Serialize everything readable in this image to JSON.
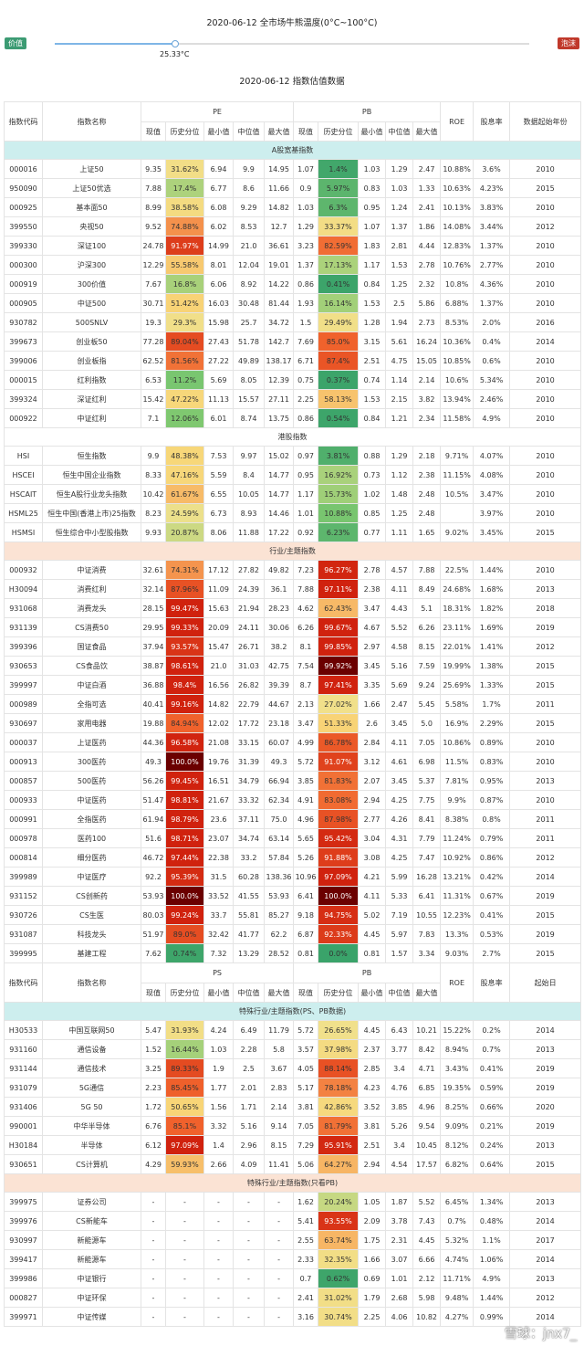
{
  "header": {
    "title": "2020-06-12 全市场牛熊温度(0°C~100°C)",
    "left_label": "价值",
    "right_label": "泡沫",
    "temperature": "25.33°C",
    "temperature_value": 25.33,
    "subtitle": "2020-06-12 指数估值数据"
  },
  "table": {
    "head1": [
      "指数代码",
      "指数名称",
      "PE",
      "PB",
      "ROE",
      "股息率",
      "数据起始年份"
    ],
    "head1_ps": [
      "指数代码",
      "指数名称",
      "PS",
      "PB",
      "ROE",
      "股息率",
      "起始日"
    ],
    "head2": [
      "现值",
      "历史分位",
      "最小值",
      "中位值",
      "最大值",
      "现值",
      "历史分位",
      "最小值",
      "中位值",
      "最大值"
    ],
    "sections": [
      {
        "title": "A股宽基指数",
        "color": "cyan",
        "header": null,
        "rows": [
          [
            "000016",
            "上证50",
            "9.35",
            "31.62%",
            "6.94",
            "9.9",
            "14.95",
            "1.07",
            "1.4%",
            "1.03",
            "1.29",
            "2.47",
            "10.88%",
            "3.6%",
            "2010"
          ],
          [
            "950090",
            "上证50优选",
            "7.88",
            "17.4%",
            "6.77",
            "8.6",
            "11.66",
            "0.9",
            "5.97%",
            "0.83",
            "1.03",
            "1.33",
            "10.63%",
            "4.23%",
            "2015"
          ],
          [
            "000925",
            "基本面50",
            "8.99",
            "38.58%",
            "6.08",
            "9.29",
            "14.82",
            "1.03",
            "6.3%",
            "0.95",
            "1.24",
            "2.41",
            "10.13%",
            "3.83%",
            "2010"
          ],
          [
            "399550",
            "央视50",
            "9.52",
            "74.88%",
            "6.02",
            "8.53",
            "12.7",
            "1.29",
            "33.37%",
            "1.07",
            "1.37",
            "1.86",
            "14.08%",
            "3.44%",
            "2012"
          ],
          [
            "399330",
            "深证100",
            "24.78",
            "91.97%",
            "14.99",
            "21.0",
            "36.61",
            "3.23",
            "82.59%",
            "1.83",
            "2.81",
            "4.44",
            "12.83%",
            "1.37%",
            "2010"
          ],
          [
            "000300",
            "沪深300",
            "12.29",
            "55.58%",
            "8.01",
            "12.04",
            "19.01",
            "1.37",
            "17.13%",
            "1.17",
            "1.53",
            "2.78",
            "10.76%",
            "2.77%",
            "2010"
          ],
          [
            "000919",
            "300价值",
            "7.67",
            "16.8%",
            "6.06",
            "8.92",
            "14.22",
            "0.86",
            "0.41%",
            "0.84",
            "1.25",
            "2.32",
            "10.8%",
            "4.36%",
            "2010"
          ],
          [
            "000905",
            "中证500",
            "30.71",
            "51.42%",
            "16.03",
            "30.48",
            "81.44",
            "1.93",
            "16.14%",
            "1.53",
            "2.5",
            "5.86",
            "6.88%",
            "1.37%",
            "2010"
          ],
          [
            "930782",
            "500SNLV",
            "19.3",
            "29.3%",
            "15.98",
            "25.7",
            "34.72",
            "1.5",
            "29.49%",
            "1.28",
            "1.94",
            "2.73",
            "8.53%",
            "2.0%",
            "2016"
          ],
          [
            "399673",
            "创业板50",
            "77.28",
            "89.04%",
            "27.43",
            "51.78",
            "142.7",
            "7.69",
            "85.0%",
            "3.15",
            "5.61",
            "16.24",
            "10.36%",
            "0.4%",
            "2014"
          ],
          [
            "399006",
            "创业板指",
            "62.52",
            "81.56%",
            "27.22",
            "49.89",
            "138.17",
            "6.71",
            "87.4%",
            "2.51",
            "4.75",
            "15.05",
            "10.85%",
            "0.6%",
            "2010"
          ],
          [
            "000015",
            "红利指数",
            "6.53",
            "11.2%",
            "5.69",
            "8.05",
            "12.39",
            "0.75",
            "0.37%",
            "0.74",
            "1.14",
            "2.14",
            "10.6%",
            "5.34%",
            "2010"
          ],
          [
            "399324",
            "深证红利",
            "15.42",
            "47.22%",
            "11.13",
            "15.57",
            "27.11",
            "2.25",
            "58.13%",
            "1.53",
            "2.15",
            "3.82",
            "13.94%",
            "2.46%",
            "2010"
          ],
          [
            "000922",
            "中证红利",
            "7.1",
            "12.06%",
            "6.01",
            "8.74",
            "13.75",
            "0.86",
            "0.54%",
            "0.84",
            "1.21",
            "2.34",
            "11.58%",
            "4.9%",
            "2010"
          ]
        ]
      },
      {
        "title": "港股指数",
        "color": "white",
        "header": null,
        "rows": [
          [
            "HSI",
            "恒生指数",
            "9.9",
            "48.38%",
            "7.53",
            "9.97",
            "15.02",
            "0.97",
            "3.81%",
            "0.88",
            "1.29",
            "2.18",
            "9.71%",
            "4.07%",
            "2010"
          ],
          [
            "HSCEI",
            "恒生中国企业指数",
            "8.33",
            "47.16%",
            "5.59",
            "8.4",
            "14.77",
            "0.95",
            "16.92%",
            "0.73",
            "1.12",
            "2.38",
            "11.15%",
            "4.08%",
            "2010"
          ],
          [
            "HSCAIT",
            "恒生A股行业龙头指数",
            "10.42",
            "61.67%",
            "6.55",
            "10.05",
            "14.77",
            "1.17",
            "15.73%",
            "1.02",
            "1.48",
            "2.48",
            "10.5%",
            "3.47%",
            "2010"
          ],
          [
            "HSML25",
            "恒生中国(香港上市)25指数",
            "8.23",
            "24.59%",
            "6.73",
            "8.93",
            "14.46",
            "1.01",
            "10.88%",
            "0.85",
            "1.25",
            "2.48",
            "",
            "3.97%",
            "2010"
          ],
          [
            "HSMSI",
            "恒生综合中小型股指数",
            "9.93",
            "20.87%",
            "8.06",
            "11.88",
            "17.22",
            "0.92",
            "6.23%",
            "0.77",
            "1.11",
            "1.65",
            "9.02%",
            "3.45%",
            "2015"
          ]
        ]
      },
      {
        "title": "行业/主题指数",
        "color": "peach",
        "header": null,
        "rows": [
          [
            "000932",
            "中证消费",
            "32.61",
            "74.31%",
            "17.12",
            "27.82",
            "49.82",
            "7.23",
            "96.27%",
            "2.78",
            "4.57",
            "7.88",
            "22.5%",
            "1.44%",
            "2010"
          ],
          [
            "H30094",
            "消费红利",
            "32.14",
            "87.96%",
            "11.09",
            "24.39",
            "36.1",
            "7.88",
            "97.11%",
            "2.38",
            "4.11",
            "8.49",
            "24.68%",
            "1.68%",
            "2013"
          ],
          [
            "931068",
            "消费龙头",
            "28.15",
            "99.47%",
            "15.63",
            "21.94",
            "28.23",
            "4.62",
            "62.43%",
            "3.47",
            "4.43",
            "5.1",
            "18.31%",
            "1.82%",
            "2018"
          ],
          [
            "931139",
            "CS消费50",
            "29.95",
            "99.33%",
            "20.09",
            "24.11",
            "30.06",
            "6.26",
            "99.67%",
            "4.67",
            "5.52",
            "6.26",
            "23.11%",
            "1.69%",
            "2019"
          ],
          [
            "399396",
            "国证食品",
            "37.94",
            "93.57%",
            "15.47",
            "26.71",
            "38.2",
            "8.1",
            "99.85%",
            "2.97",
            "4.58",
            "8.15",
            "22.01%",
            "1.41%",
            "2012"
          ],
          [
            "930653",
            "CS食品饮",
            "38.87",
            "98.61%",
            "21.0",
            "31.03",
            "42.75",
            "7.54",
            "99.92%",
            "3.45",
            "5.16",
            "7.59",
            "19.99%",
            "1.38%",
            "2015"
          ],
          [
            "399997",
            "中证白酒",
            "36.88",
            "98.4%",
            "16.56",
            "26.82",
            "39.39",
            "8.7",
            "97.41%",
            "3.35",
            "5.69",
            "9.24",
            "25.69%",
            "1.33%",
            "2015"
          ],
          [
            "000989",
            "全指可选",
            "40.41",
            "99.16%",
            "14.82",
            "22.79",
            "44.67",
            "2.13",
            "27.02%",
            "1.66",
            "2.47",
            "5.45",
            "5.58%",
            "1.7%",
            "2011"
          ],
          [
            "930697",
            "家用电器",
            "19.88",
            "84.94%",
            "12.02",
            "17.72",
            "23.18",
            "3.47",
            "51.33%",
            "2.6",
            "3.45",
            "5.0",
            "16.9%",
            "2.29%",
            "2015"
          ],
          [
            "000037",
            "上证医药",
            "44.36",
            "96.58%",
            "21.08",
            "33.15",
            "60.07",
            "4.99",
            "86.78%",
            "2.84",
            "4.11",
            "7.05",
            "10.86%",
            "0.89%",
            "2010"
          ],
          [
            "000913",
            "300医药",
            "49.3",
            "100.0%",
            "19.76",
            "31.39",
            "49.3",
            "5.72",
            "91.07%",
            "3.12",
            "4.61",
            "6.98",
            "11.5%",
            "0.83%",
            "2010"
          ],
          [
            "000857",
            "500医药",
            "56.26",
            "99.45%",
            "16.51",
            "34.79",
            "66.94",
            "3.85",
            "81.83%",
            "2.07",
            "3.45",
            "5.37",
            "7.81%",
            "0.95%",
            "2013"
          ],
          [
            "000933",
            "中证医药",
            "51.47",
            "98.81%",
            "21.67",
            "33.32",
            "62.34",
            "4.91",
            "83.08%",
            "2.94",
            "4.25",
            "7.75",
            "9.9%",
            "0.87%",
            "2010"
          ],
          [
            "000991",
            "全指医药",
            "61.94",
            "98.79%",
            "23.6",
            "37.11",
            "75.0",
            "4.96",
            "87.98%",
            "2.77",
            "4.26",
            "8.41",
            "8.38%",
            "0.8%",
            "2011"
          ],
          [
            "000978",
            "医药100",
            "51.6",
            "98.71%",
            "23.07",
            "34.74",
            "63.14",
            "5.65",
            "95.42%",
            "3.04",
            "4.31",
            "7.79",
            "11.24%",
            "0.79%",
            "2011"
          ],
          [
            "000814",
            "细分医药",
            "46.72",
            "97.44%",
            "22.38",
            "33.2",
            "57.84",
            "5.26",
            "91.88%",
            "3.08",
            "4.25",
            "7.47",
            "10.92%",
            "0.86%",
            "2012"
          ],
          [
            "399989",
            "中证医疗",
            "92.2",
            "95.39%",
            "31.5",
            "60.28",
            "138.36",
            "10.96",
            "97.09%",
            "4.21",
            "5.99",
            "16.28",
            "13.21%",
            "0.42%",
            "2014"
          ],
          [
            "931152",
            "CS创新药",
            "53.93",
            "100.0%",
            "33.52",
            "41.55",
            "53.93",
            "6.41",
            "100.0%",
            "4.11",
            "5.33",
            "6.41",
            "11.31%",
            "0.67%",
            "2019"
          ],
          [
            "930726",
            "CS生医",
            "80.03",
            "99.24%",
            "33.7",
            "55.81",
            "85.27",
            "9.18",
            "94.75%",
            "5.02",
            "7.19",
            "10.55",
            "12.23%",
            "0.41%",
            "2015"
          ],
          [
            "931087",
            "科技龙头",
            "51.97",
            "89.0%",
            "32.42",
            "41.77",
            "62.2",
            "6.87",
            "92.33%",
            "4.45",
            "5.97",
            "7.83",
            "13.3%",
            "0.53%",
            "2019"
          ],
          [
            "399995",
            "基建工程",
            "7.62",
            "0.74%",
            "7.32",
            "13.29",
            "28.52",
            "0.81",
            "0.0%",
            "0.81",
            "1.57",
            "3.34",
            "9.03%",
            "2.7%",
            "2015"
          ]
        ]
      },
      {
        "title": "特殊行业/主题指数(PS、PB数据)",
        "color": "cyan",
        "header": "ps",
        "rows": [
          [
            "H30533",
            "中国互联网50",
            "5.47",
            "31.93%",
            "4.24",
            "6.49",
            "11.79",
            "5.72",
            "26.65%",
            "4.45",
            "6.43",
            "10.21",
            "15.22%",
            "0.2%",
            "2014"
          ],
          [
            "931160",
            "通信设备",
            "1.52",
            "16.44%",
            "1.03",
            "2.28",
            "5.8",
            "3.57",
            "37.98%",
            "2.37",
            "3.77",
            "8.42",
            "8.94%",
            "0.7%",
            "2013"
          ],
          [
            "931144",
            "通信技术",
            "3.25",
            "89.33%",
            "1.9",
            "2.5",
            "3.67",
            "4.05",
            "88.14%",
            "2.85",
            "3.4",
            "4.71",
            "3.43%",
            "0.41%",
            "2019"
          ],
          [
            "931079",
            "5G通信",
            "2.23",
            "85.45%",
            "1.77",
            "2.01",
            "2.83",
            "5.17",
            "78.18%",
            "4.23",
            "4.76",
            "6.85",
            "19.35%",
            "0.59%",
            "2019"
          ],
          [
            "931406",
            "5G 50",
            "1.72",
            "50.65%",
            "1.56",
            "1.71",
            "2.14",
            "3.81",
            "42.86%",
            "3.52",
            "3.85",
            "4.96",
            "8.25%",
            "0.66%",
            "2020"
          ],
          [
            "990001",
            "中华半导体",
            "6.76",
            "85.1%",
            "3.32",
            "5.16",
            "9.14",
            "7.05",
            "81.79%",
            "3.81",
            "5.26",
            "9.54",
            "9.09%",
            "0.21%",
            "2019"
          ],
          [
            "H30184",
            "半导体",
            "6.12",
            "97.09%",
            "1.4",
            "2.96",
            "8.15",
            "7.29",
            "95.91%",
            "2.51",
            "3.4",
            "10.45",
            "8.12%",
            "0.24%",
            "2013"
          ],
          [
            "930651",
            "CS计算机",
            "4.29",
            "59.93%",
            "2.66",
            "4.09",
            "11.41",
            "5.06",
            "64.27%",
            "2.94",
            "4.54",
            "17.57",
            "6.82%",
            "0.64%",
            "2015"
          ]
        ]
      },
      {
        "title": "特殊行业/主题指数(只看PB)",
        "color": "peach",
        "header": null,
        "rows": [
          [
            "399975",
            "证券公司",
            "-",
            "-",
            "-",
            "-",
            "-",
            "1.62",
            "20.24%",
            "1.05",
            "1.87",
            "5.52",
            "6.45%",
            "1.34%",
            "2013"
          ],
          [
            "399976",
            "CS新能车",
            "-",
            "-",
            "-",
            "-",
            "-",
            "5.41",
            "93.55%",
            "2.09",
            "3.78",
            "7.43",
            "0.7%",
            "0.48%",
            "2014"
          ],
          [
            "930997",
            "新能源车",
            "-",
            "-",
            "-",
            "-",
            "-",
            "2.55",
            "63.74%",
            "1.75",
            "2.31",
            "4.45",
            "5.32%",
            "1.1%",
            "2017"
          ],
          [
            "399417",
            "新能源车",
            "-",
            "-",
            "-",
            "-",
            "-",
            "2.33",
            "32.35%",
            "1.66",
            "3.07",
            "6.66",
            "4.74%",
            "1.06%",
            "2014"
          ],
          [
            "399986",
            "中证银行",
            "-",
            "-",
            "-",
            "-",
            "-",
            "0.7",
            "0.62%",
            "0.69",
            "1.01",
            "2.12",
            "11.71%",
            "4.9%",
            "2013"
          ],
          [
            "000827",
            "中证环保",
            "-",
            "-",
            "-",
            "-",
            "-",
            "2.41",
            "31.02%",
            "1.79",
            "2.68",
            "5.98",
            "9.48%",
            "1.44%",
            "2012"
          ],
          [
            "399971",
            "中证传媒",
            "-",
            "-",
            "-",
            "-",
            "-",
            "3.16",
            "30.74%",
            "2.25",
            "4.06",
            "10.82",
            "4.27%",
            "0.99%",
            "2014"
          ]
        ]
      }
    ]
  },
  "colors": {
    "low": "#3fa36a",
    "mid": "#f7e08c",
    "high": "#c81e0f",
    "max": "#6b0000"
  },
  "watermark": "雪球：jnx7_"
}
